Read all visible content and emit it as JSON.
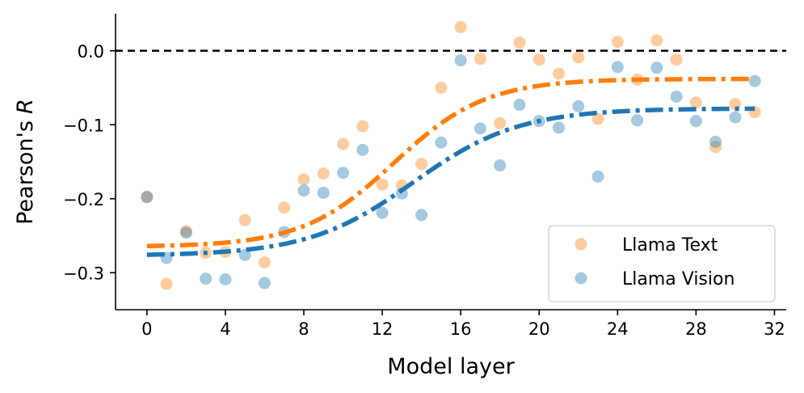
{
  "chart_data": {
    "type": "scatter",
    "title": "",
    "xlabel": "Model layer",
    "ylabel": "Pearson's",
    "ylabel_var": "R",
    "xlim": [
      -1.6,
      32.6
    ],
    "ylim": [
      -0.35,
      0.05
    ],
    "xticks": [
      0,
      4,
      8,
      12,
      16,
      20,
      24,
      28,
      32
    ],
    "xtick_labels": [
      "0",
      "4",
      "8",
      "12",
      "16",
      "20",
      "24",
      "28",
      "32"
    ],
    "yticks": [
      0.0,
      -0.1,
      -0.2,
      -0.3
    ],
    "ytick_labels": [
      "0.0",
      "−0.1",
      "−0.2",
      "−0.3"
    ],
    "reference_line": {
      "y": 0.0,
      "style": "dashed",
      "color": "#000000"
    },
    "legend": {
      "position": "lower-right"
    },
    "series": [
      {
        "name": "Llama Text",
        "color": "#ff7f0e",
        "x": [
          0,
          1,
          2,
          3,
          4,
          5,
          6,
          7,
          8,
          9,
          10,
          11,
          12,
          13,
          14,
          15,
          16,
          17,
          18,
          19,
          20,
          21,
          22,
          23,
          24,
          25,
          26,
          27,
          28,
          29,
          30,
          31
        ],
        "values": [
          -0.197,
          -0.315,
          -0.244,
          -0.273,
          -0.272,
          -0.229,
          -0.286,
          -0.212,
          -0.174,
          -0.166,
          -0.126,
          -0.102,
          -0.181,
          -0.182,
          -0.153,
          -0.05,
          0.032,
          -0.011,
          -0.098,
          0.011,
          -0.012,
          -0.031,
          -0.009,
          -0.092,
          0.012,
          -0.039,
          0.014,
          -0.012,
          -0.07,
          -0.13,
          -0.072,
          -0.083
        ],
        "fit": {
          "lower": -0.265,
          "upper": -0.038,
          "midpoint": 12.6,
          "scale": 2.35
        }
      },
      {
        "name": "Llama Vision",
        "color": "#1f77b4",
        "x": [
          0,
          1,
          2,
          3,
          4,
          5,
          6,
          7,
          8,
          9,
          10,
          11,
          12,
          13,
          14,
          15,
          16,
          17,
          18,
          19,
          20,
          21,
          22,
          23,
          24,
          25,
          26,
          27,
          28,
          29,
          30,
          31
        ],
        "values": [
          -0.198,
          -0.28,
          -0.246,
          -0.308,
          -0.309,
          -0.276,
          -0.314,
          -0.245,
          -0.189,
          -0.192,
          -0.165,
          -0.134,
          -0.219,
          -0.193,
          -0.222,
          -0.124,
          -0.013,
          -0.105,
          -0.155,
          -0.073,
          -0.095,
          -0.104,
          -0.075,
          -0.17,
          -0.022,
          -0.094,
          -0.023,
          -0.062,
          -0.095,
          -0.123,
          -0.09,
          -0.041
        ],
        "fit": {
          "lower": -0.277,
          "upper": -0.078,
          "midpoint": 13.6,
          "scale": 2.7
        }
      }
    ]
  }
}
